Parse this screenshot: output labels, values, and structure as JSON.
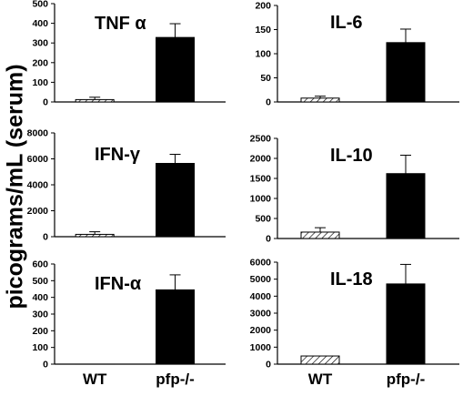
{
  "figure": {
    "ylabel": "picograms/mL (serum)"
  },
  "chart_data": [
    {
      "type": "bar",
      "title": "TNF α",
      "categories": [
        "WT",
        "pfp-/-"
      ],
      "values": [
        12,
        328
      ],
      "errors": [
        12,
        70
      ],
      "ylim": [
        0,
        500
      ],
      "yticks": [
        0,
        100,
        200,
        300,
        400,
        500
      ],
      "show_xlabels": false
    },
    {
      "type": "bar",
      "title": "IL-6",
      "categories": [
        "WT",
        "pfp-/-"
      ],
      "values": [
        8,
        123
      ],
      "errors": [
        4,
        28
      ],
      "ylim": [
        0,
        200
      ],
      "yticks": [
        0,
        50,
        100,
        150,
        200
      ],
      "show_xlabels": false
    },
    {
      "type": "bar",
      "title": "IFN-γ",
      "categories": [
        "WT",
        "pfp-/-"
      ],
      "values": [
        180,
        5650
      ],
      "errors": [
        200,
        700
      ],
      "ylim": [
        0,
        8000
      ],
      "yticks": [
        0,
        2000,
        4000,
        6000,
        8000
      ],
      "show_xlabels": false
    },
    {
      "type": "bar",
      "title": "IL-10",
      "categories": [
        "WT",
        "pfp-/-"
      ],
      "values": [
        160,
        1620
      ],
      "errors": [
        110,
        460
      ],
      "ylim": [
        0,
        2500
      ],
      "yticks": [
        0,
        500,
        1000,
        1500,
        2000,
        2500
      ],
      "show_xlabels": false
    },
    {
      "type": "bar",
      "title": "IFN-α",
      "categories": [
        "WT",
        "pfp-/-"
      ],
      "values": [
        0,
        445
      ],
      "errors": [
        0,
        90
      ],
      "ylim": [
        0,
        600
      ],
      "yticks": [
        0,
        100,
        200,
        300,
        400,
        500,
        600
      ],
      "show_xlabels": true
    },
    {
      "type": "bar",
      "title": "IL-18",
      "categories": [
        "WT",
        "pfp-/-"
      ],
      "values": [
        480,
        4720
      ],
      "errors": [
        0,
        1150
      ],
      "ylim": [
        0,
        6000
      ],
      "yticks": [
        0,
        1000,
        2000,
        3000,
        4000,
        5000,
        6000
      ],
      "show_xlabels": true
    }
  ]
}
